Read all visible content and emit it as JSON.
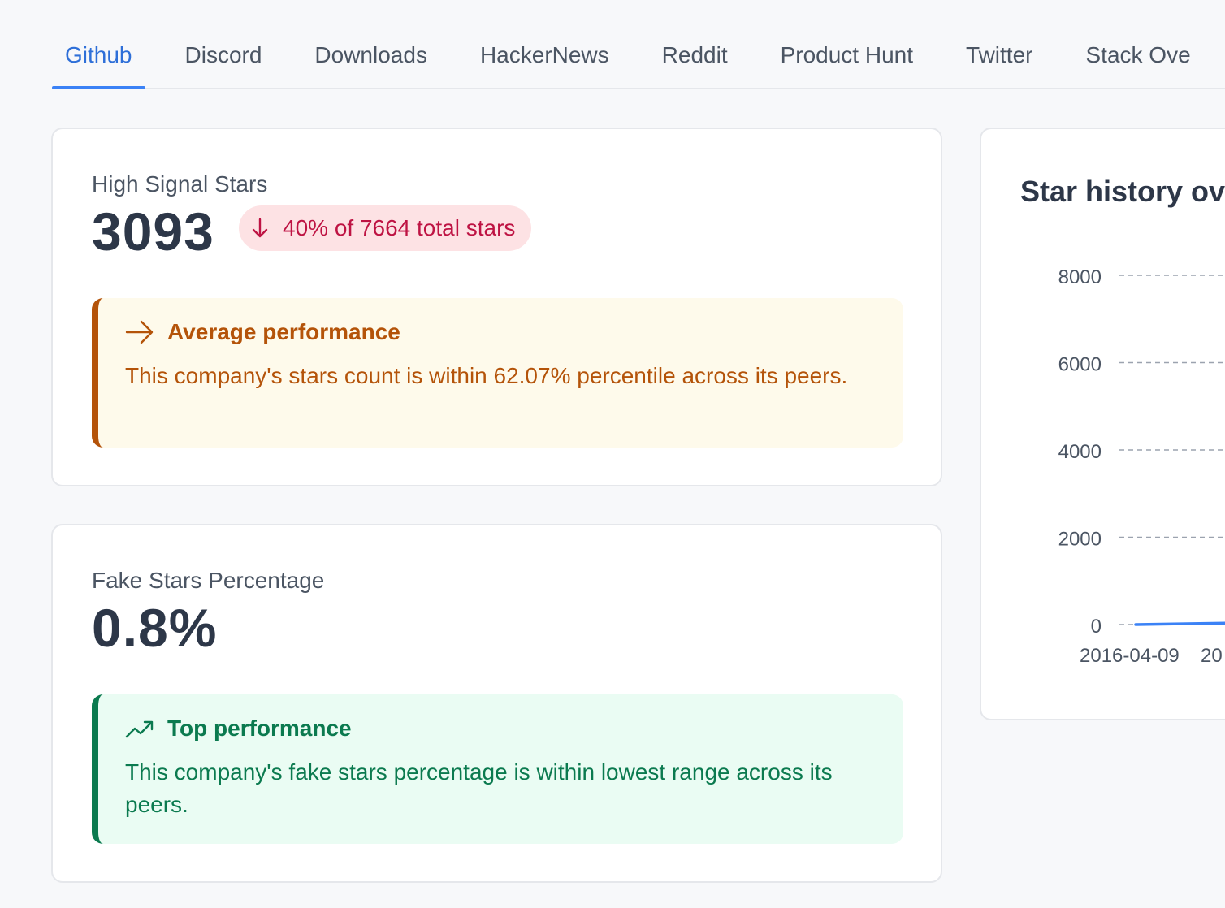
{
  "tabs": [
    {
      "label": "Github",
      "active": true
    },
    {
      "label": "Discord",
      "active": false
    },
    {
      "label": "Downloads",
      "active": false
    },
    {
      "label": "HackerNews",
      "active": false
    },
    {
      "label": "Reddit",
      "active": false
    },
    {
      "label": "Product Hunt",
      "active": false
    },
    {
      "label": "Twitter",
      "active": false
    },
    {
      "label": "Stack Ove",
      "active": false
    }
  ],
  "high_signal": {
    "label": "High Signal Stars",
    "value": "3093",
    "badge": "40% of 7664 total stars",
    "badge_icon": "arrow-down-icon",
    "callout": {
      "icon": "arrow-right-icon",
      "title": "Average performance",
      "body": "This company's stars count is within 62.07% percentile across its peers."
    }
  },
  "fake_stars": {
    "label": "Fake Stars Percentage",
    "value": "0.8%",
    "callout": {
      "icon": "trending-up-icon",
      "title": "Top performance",
      "body": "This company's fake stars percentage is within lowest range across its peers."
    }
  },
  "chart": {
    "title": "Star history ove"
  },
  "chart_data": {
    "type": "line",
    "title": "Star history ove",
    "y_ticks": [
      "8000",
      "6000",
      "4000",
      "2000",
      "0"
    ],
    "x_ticks": [
      "2016-04-09",
      "20"
    ],
    "ylim": [
      0,
      8000
    ],
    "grid": true,
    "series": [
      {
        "x": [
          "2016-04-09",
          "20"
        ],
        "values": [
          0,
          50
        ]
      }
    ]
  },
  "colors": {
    "accent": "#3b82f6",
    "badge_bg": "#fde2e4",
    "badge_text": "#be1343",
    "amber": "#b45309",
    "green": "#0b7a4f"
  }
}
